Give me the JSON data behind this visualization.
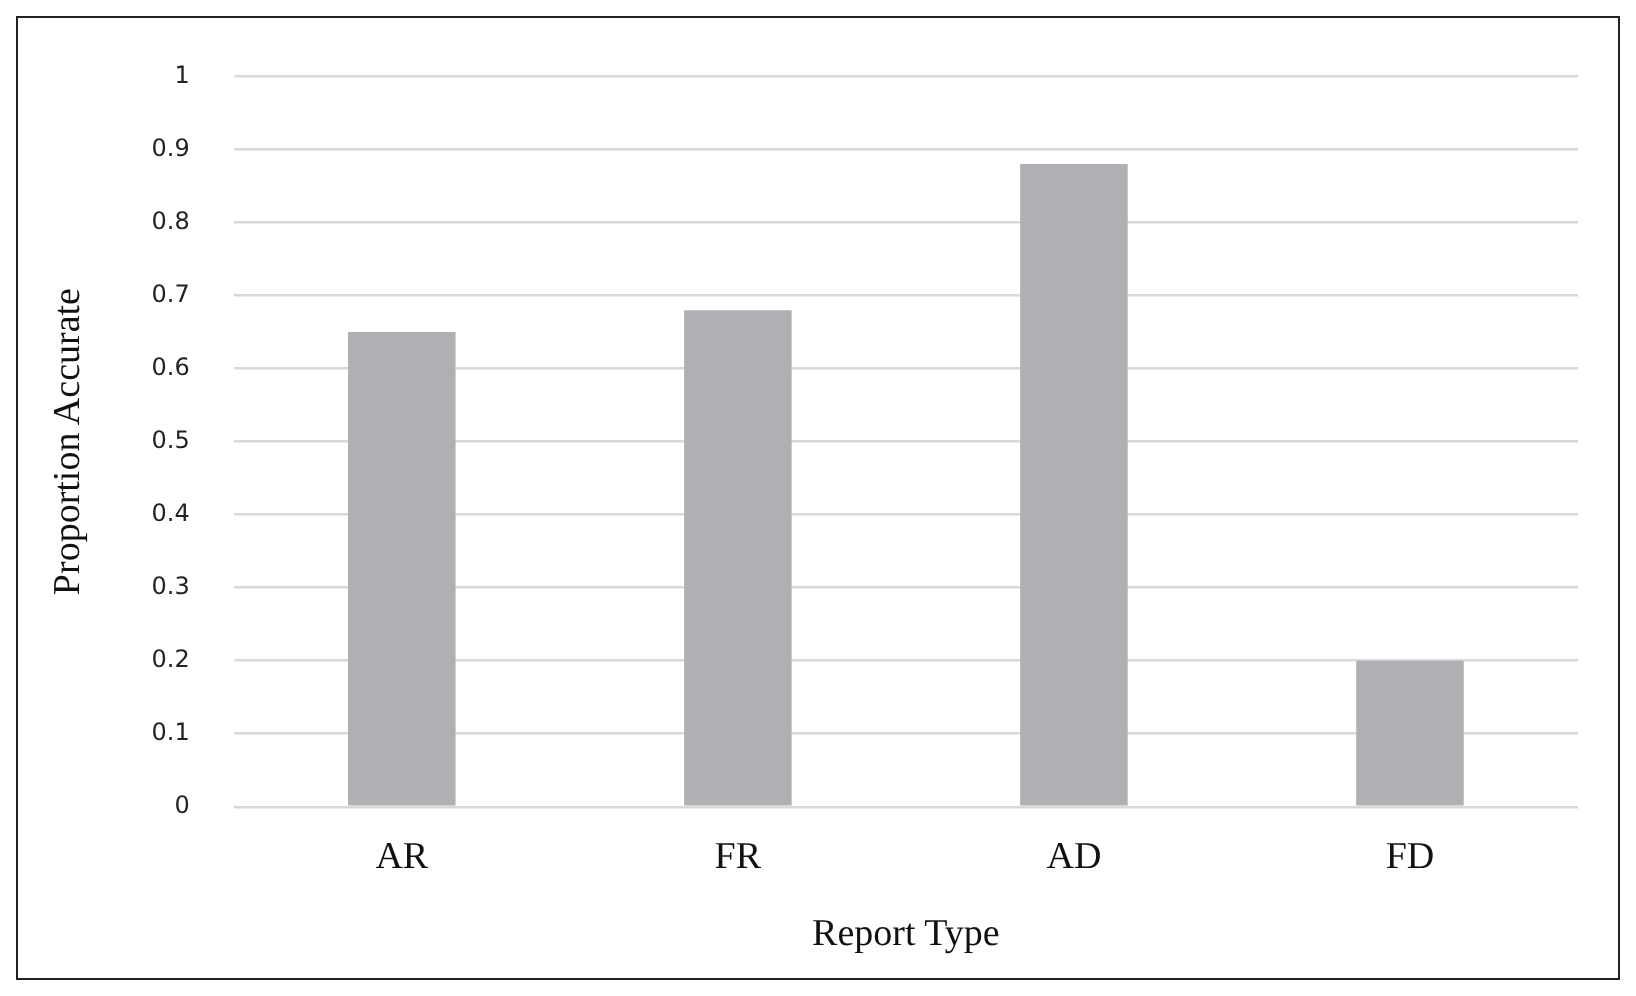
{
  "chart_data": {
    "type": "bar",
    "xlabel": "Report Type",
    "ylabel": "Proportion Accurate",
    "categories": [
      "AR",
      "FR",
      "AD",
      "FD"
    ],
    "values": [
      0.65,
      0.68,
      0.88,
      0.2
    ],
    "color": "#afb0b3",
    "ylim": [
      0,
      1
    ],
    "yticks": [
      0,
      0.1,
      0.2,
      0.3,
      0.4,
      0.5,
      0.6,
      0.7,
      0.8,
      0.9,
      1
    ],
    "grid": "y",
    "legend": false
  }
}
